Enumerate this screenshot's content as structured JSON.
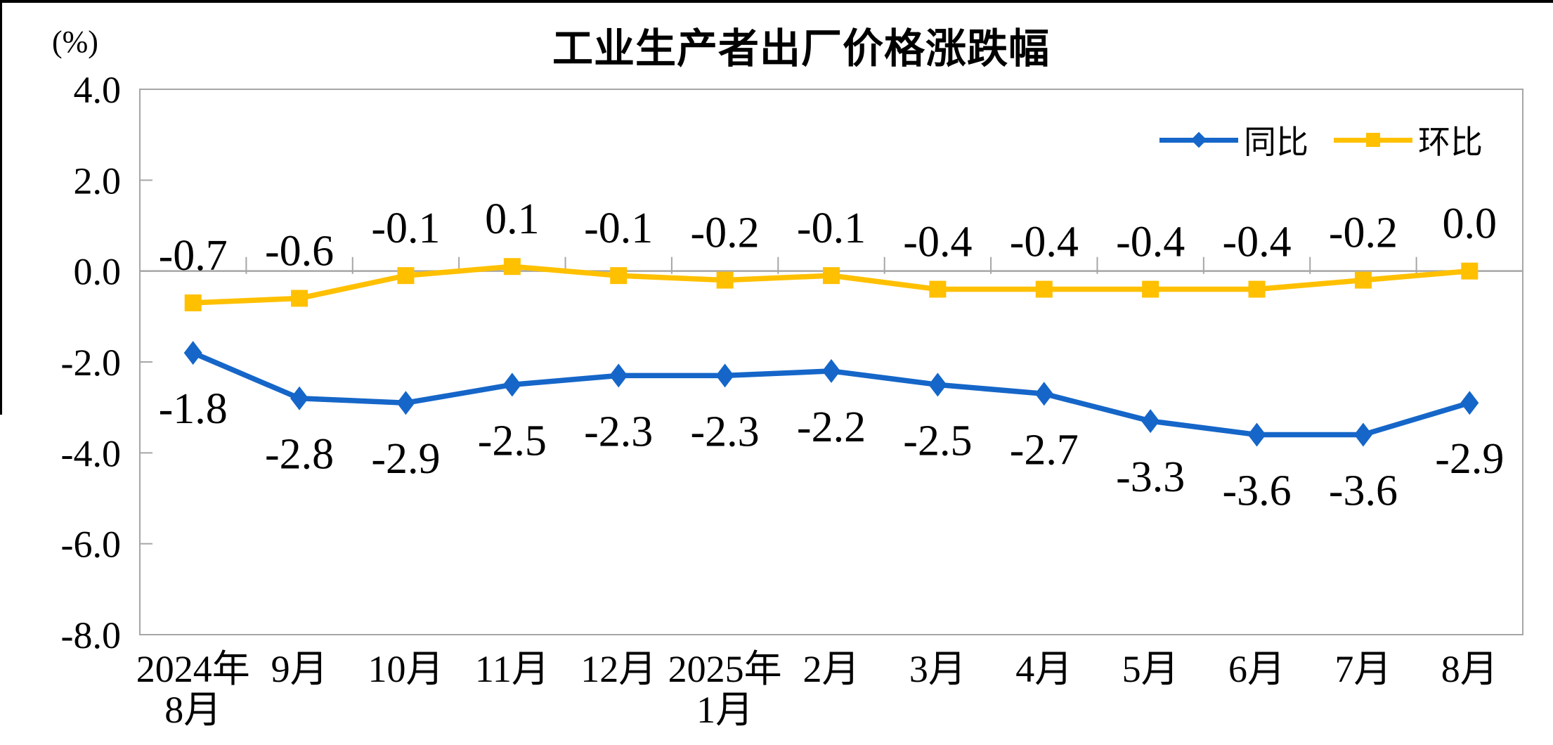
{
  "page": {
    "background": "#FFFFFF",
    "frame_color": "#000000"
  },
  "title": "工业生产者出厂价格涨跌幅",
  "unit_label": "(%)",
  "legend": {
    "position": "top-right",
    "items": [
      {
        "label": "同比",
        "color": "#1566C8",
        "marker": "diamond"
      },
      {
        "label": "环比",
        "color": "#FFC000",
        "marker": "square"
      }
    ]
  },
  "chart_data": {
    "type": "line",
    "title": "工业生产者出厂价格涨跌幅",
    "ylabel": "(%)",
    "xlabel": "",
    "ylim": [
      -8.0,
      4.0
    ],
    "y_ticks": [
      "4.0",
      "2.0",
      "0.0",
      "-2.0",
      "-4.0",
      "-6.0",
      "-8.0"
    ],
    "y_tick_values": [
      4.0,
      2.0,
      0.0,
      -2.0,
      -4.0,
      -6.0,
      -8.0
    ],
    "grid": false,
    "zero_line": true,
    "plot_border": true,
    "axis_color": "#A6A6A6",
    "legend_position": "top-right",
    "categories": [
      [
        "2024年",
        "8月"
      ],
      [
        "9月"
      ],
      [
        "10月"
      ],
      [
        "11月"
      ],
      [
        "12月"
      ],
      [
        "2025年",
        "1月"
      ],
      [
        "2月"
      ],
      [
        "3月"
      ],
      [
        "4月"
      ],
      [
        "5月"
      ],
      [
        "6月"
      ],
      [
        "7月"
      ],
      [
        "8月"
      ]
    ],
    "series": [
      {
        "name": "同比",
        "color": "#1566C8",
        "marker": "diamond",
        "label_position": "below",
        "values": [
          -1.8,
          -2.8,
          -2.9,
          -2.5,
          -2.3,
          -2.3,
          -2.2,
          -2.5,
          -2.7,
          -3.3,
          -3.6,
          -3.6,
          -2.9
        ],
        "labels": [
          "-1.8",
          "-2.8",
          "-2.9",
          "-2.5",
          "-2.3",
          "-2.3",
          "-2.2",
          "-2.5",
          "-2.7",
          "-3.3",
          "-3.6",
          "-3.6",
          "-2.9"
        ]
      },
      {
        "name": "环比",
        "color": "#FFC000",
        "marker": "square",
        "label_position": "above",
        "values": [
          -0.7,
          -0.6,
          -0.1,
          0.1,
          -0.1,
          -0.2,
          -0.1,
          -0.4,
          -0.4,
          -0.4,
          -0.4,
          -0.2,
          0.0
        ],
        "labels": [
          "-0.7",
          "-0.6",
          "-0.1",
          "0.1",
          "-0.1",
          "-0.2",
          "-0.1",
          "-0.4",
          "-0.4",
          "-0.4",
          "-0.4",
          "-0.2",
          "0.0"
        ]
      }
    ]
  }
}
